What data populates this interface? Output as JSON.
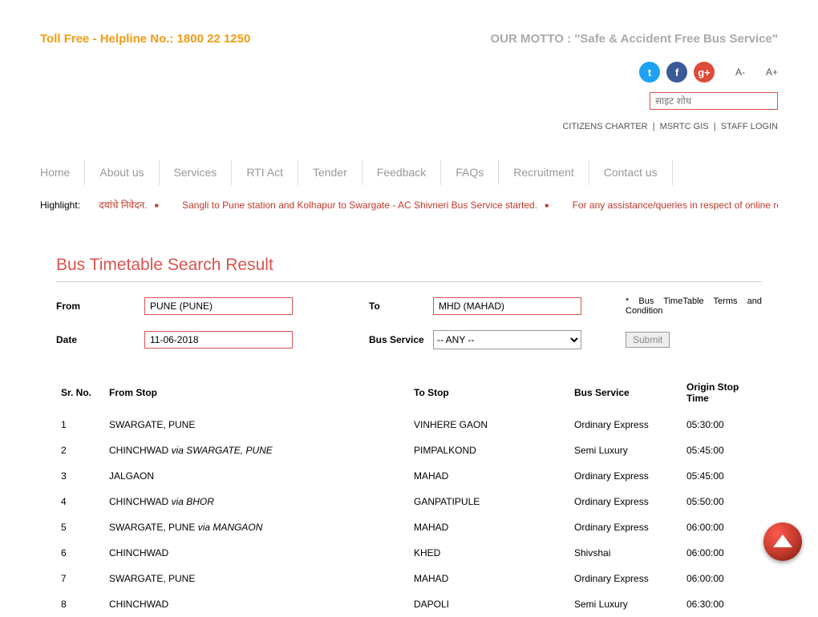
{
  "header": {
    "helpline": "Toll Free - Helpline No.: 1800 22 1250",
    "motto": "OUR MOTTO : \"Safe & Accident Free Bus Service\"",
    "font_minus": "A-",
    "font_plus": "A+",
    "search_placeholder": "साइट शोध",
    "util_links": [
      "CITIZENS CHARTER",
      "MSRTC GIS",
      "STAFF LOGIN"
    ],
    "social": {
      "twitter_color": "#1da1f2",
      "facebook_color": "#3b5998",
      "gplus_color": "#dd4b39"
    }
  },
  "nav": [
    "Home",
    "About us",
    "Services",
    "RTI Act",
    "Tender",
    "Feedback",
    "FAQs",
    "Recruitment",
    "Contact us"
  ],
  "highlight": {
    "label": "Highlight:",
    "items": [
      "दयांचे निवेदन.",
      "Sangli to Pune station and Kolhapur to Swargate - AC Shivneri Bus Service started.",
      "For any assistance/queries in respect of online reservation"
    ]
  },
  "page_title": "Bus Timetable Search Result",
  "form": {
    "from_label": "From",
    "from_value": "PUNE (PUNE)",
    "to_label": "To",
    "to_value": "MHD (MAHAD)",
    "date_label": "Date",
    "date_value": "11-06-2018",
    "service_label": "Bus Service",
    "service_value": "-- ANY --",
    "terms": "* Bus TimeTable Terms and Condition",
    "submit": "Submit"
  },
  "table": {
    "headers": [
      "Sr. No.",
      "From Stop",
      "To Stop",
      "Bus Service",
      "Origin Stop Time"
    ],
    "rows": [
      {
        "sr": "1",
        "from": "SWARGATE, PUNE",
        "via": "",
        "to": "VINHERE GAON",
        "svc": "Ordinary Express",
        "time": "05:30:00"
      },
      {
        "sr": "2",
        "from": "CHINCHWAD",
        "via": "SWARGATE, PUNE",
        "to": "PIMPALKOND",
        "svc": "Semi Luxury",
        "time": "05:45:00"
      },
      {
        "sr": "3",
        "from": "JALGAON",
        "via": "",
        "to": "MAHAD",
        "svc": "Ordinary Express",
        "time": "05:45:00"
      },
      {
        "sr": "4",
        "from": "CHINCHWAD",
        "via": "BHOR",
        "to": "GANPATIPULE",
        "svc": "Ordinary Express",
        "time": "05:50:00"
      },
      {
        "sr": "5",
        "from": "SWARGATE, PUNE",
        "via": "MANGAON",
        "to": "MAHAD",
        "svc": "Ordinary Express",
        "time": "06:00:00"
      },
      {
        "sr": "6",
        "from": "CHINCHWAD",
        "via": "",
        "to": "KHED",
        "svc": "Shivshai",
        "time": "06:00:00"
      },
      {
        "sr": "7",
        "from": "SWARGATE, PUNE",
        "via": "",
        "to": "MAHAD",
        "svc": "Ordinary Express",
        "time": "06:00:00"
      },
      {
        "sr": "8",
        "from": "CHINCHWAD",
        "via": "",
        "to": "DAPOLI",
        "svc": "Semi Luxury",
        "time": "06:30:00"
      }
    ]
  },
  "colors": {
    "accent_orange": "#f39c12",
    "accent_red": "#d9534f",
    "text_muted": "#aaa"
  }
}
